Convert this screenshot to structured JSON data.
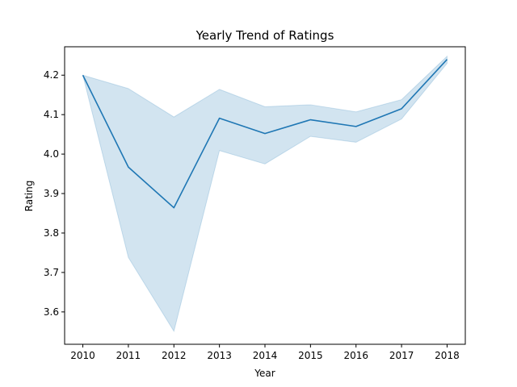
{
  "chart_data": {
    "type": "line",
    "title": "Yearly Trend of Ratings",
    "xlabel": "Year",
    "ylabel": "Rating",
    "x": [
      2010,
      2011,
      2012,
      2013,
      2014,
      2015,
      2016,
      2017,
      2018
    ],
    "xticks": [
      "2010",
      "2011",
      "2012",
      "2013",
      "2014",
      "2015",
      "2016",
      "2017",
      "2018"
    ],
    "yticks": [
      "3.6",
      "3.7",
      "3.8",
      "3.9",
      "4.0",
      "4.1",
      "4.2"
    ],
    "xlim": [
      2009.6,
      2018.4
    ],
    "ylim": [
      3.518,
      4.272
    ],
    "series": [
      {
        "values": [
          4.2,
          3.967,
          3.864,
          4.091,
          4.052,
          4.087,
          4.07,
          4.115,
          4.24
        ],
        "ci_lower": [
          4.2,
          3.738,
          3.551,
          4.009,
          3.975,
          4.045,
          4.03,
          4.089,
          4.23
        ],
        "ci_upper": [
          4.2,
          4.166,
          4.094,
          4.164,
          4.12,
          4.125,
          4.107,
          4.138,
          4.248
        ],
        "color": "#1f77b4",
        "band_color": "#1f77b4",
        "band_opacity": 0.2
      }
    ],
    "grid": false,
    "legend": "none"
  }
}
